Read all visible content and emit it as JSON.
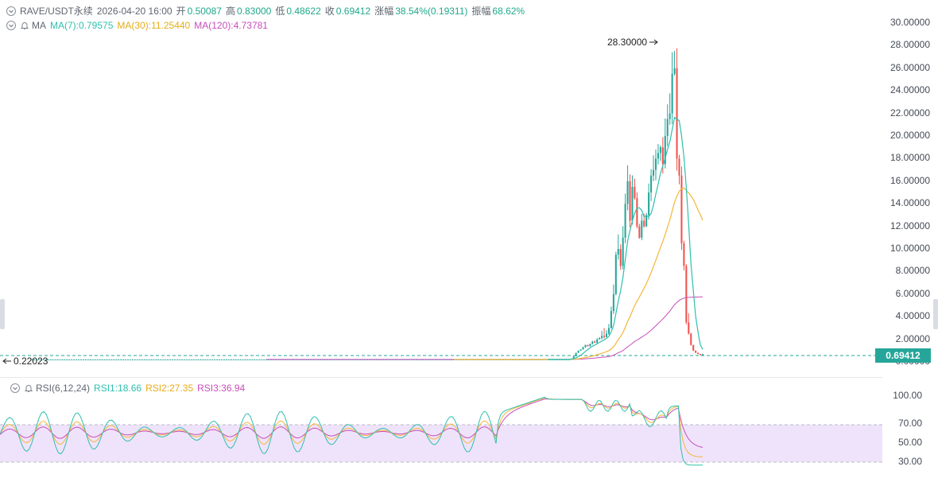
{
  "header": {
    "symbol": "RAVE/USDT永续",
    "datetime": "2026-04-20 16:00",
    "open_label": "开",
    "open": "0.50087",
    "high_label": "高",
    "high": "0.83000",
    "low_label": "低",
    "low": "0.48622",
    "close_label": "收",
    "close": "0.69412",
    "change_label": "涨幅",
    "change": "38.54%(0.19311)",
    "amplitude_label": "振幅",
    "amplitude": "68.62%"
  },
  "ma_legend": {
    "name": "MA",
    "ma7": "MA(7):0.79575",
    "ma30": "MA(30):11.25440",
    "ma120": "MA(120):4.73781"
  },
  "rsi_legend": {
    "name": "RSI(6,12,24)",
    "rsi1": "RSI1:18.66",
    "rsi2": "RSI2:27.35",
    "rsi3": "RSI3:36.94"
  },
  "price_axis": [
    "30.00000",
    "28.00000",
    "26.00000",
    "24.00000",
    "22.00000",
    "20.00000",
    "18.00000",
    "16.00000",
    "14.00000",
    "12.00000",
    "10.00000",
    "8.00000",
    "6.00000",
    "4.00000",
    "2.00000",
    "0.00000"
  ],
  "rsi_axis": [
    "100.00",
    "70.00",
    "50.00",
    "30.00"
  ],
  "annotations": {
    "high_marker": "28.30000",
    "low_marker": "0.22023",
    "last_price": "0.69412"
  },
  "colors": {
    "up": "#26a69a",
    "down": "#ef5350",
    "ma7": "#2fbfad",
    "ma30": "#f5b63a",
    "ma120": "#c94dbb",
    "rsi_band": "#efe3fb"
  },
  "chart_data": [
    {
      "type": "candlestick",
      "title": "RAVE/USDT永续",
      "ylim": [
        0,
        30
      ],
      "series": [
        {
          "name": "MA(7)",
          "last": 0.79575
        },
        {
          "name": "MA(30)",
          "last": 11.2544
        },
        {
          "name": "MA(120)",
          "last": 4.73781
        }
      ],
      "notable_values": {
        "high": 28.3,
        "low": 0.22023,
        "last": 0.69412
      },
      "approx_closes": [
        0.22,
        0.22,
        0.22,
        0.22,
        0.22,
        0.22,
        0.22,
        0.22,
        0.22,
        0.22,
        0.22,
        0.22,
        0.22,
        0.22,
        0.22,
        0.22,
        0.22,
        0.22,
        0.22,
        0.22,
        0.22,
        0.22,
        0.22,
        0.22,
        0.22,
        0.22,
        0.22,
        0.22,
        0.22,
        0.22,
        0.22,
        0.22,
        0.22,
        0.22,
        0.22,
        0.22,
        0.22,
        0.22,
        0.22,
        0.22,
        0.22,
        0.22,
        0.22,
        0.22,
        0.22,
        0.22,
        0.22,
        0.22,
        0.22,
        0.22,
        0.22,
        0.22,
        0.22,
        0.22,
        0.22,
        0.22,
        0.22,
        0.22,
        0.22,
        0.22,
        0.22,
        0.22,
        0.22,
        0.22,
        0.22,
        0.22,
        0.22,
        0.22,
        0.22,
        0.22,
        0.22,
        0.22,
        0.22,
        0.22,
        0.22,
        0.22,
        0.22,
        0.22,
        0.22,
        0.22,
        0.22,
        0.22,
        0.22,
        0.22,
        0.22,
        0.22,
        0.22,
        0.22,
        0.22,
        0.22,
        0.22,
        0.22,
        0.22,
        0.22,
        0.22,
        0.22,
        0.22,
        0.22,
        0.22,
        0.22,
        0.22,
        0.22,
        0.22,
        0.22,
        0.22,
        0.22,
        0.22,
        0.22,
        0.22,
        0.22,
        0.22,
        0.22,
        0.22,
        0.22,
        0.22,
        0.22,
        0.22,
        0.22,
        0.22,
        0.22,
        0.22,
        0.22,
        0.22,
        0.22,
        0.22,
        0.22,
        0.22,
        0.22,
        0.22,
        0.22,
        0.22,
        0.22,
        0.22,
        0.22,
        0.22,
        0.22,
        0.22,
        0.22,
        0.22,
        0.22,
        0.22,
        0.22,
        0.22,
        0.22,
        0.22,
        0.22,
        0.22,
        0.22,
        0.22,
        0.22,
        0.22,
        0.22,
        0.22,
        0.22,
        0.22,
        0.22,
        0.22,
        0.22,
        0.22,
        0.22,
        0.22,
        0.22,
        0.22,
        0.22,
        0.22,
        0.22,
        0.22,
        0.22,
        0.22,
        0.22,
        0.22,
        0.22,
        0.22,
        0.22,
        0.22,
        0.22,
        0.22,
        0.22,
        0.22,
        0.22,
        0.22,
        0.22,
        0.22,
        0.22,
        0.22,
        0.22,
        0.22,
        0.22,
        0.22,
        0.22,
        0.22,
        0.22,
        0.22,
        0.22,
        0.22,
        0.22,
        0.22,
        0.22,
        0.22,
        0.22,
        0.22,
        0.22,
        0.22,
        0.22,
        0.22,
        0.22,
        0.22,
        0.22,
        0.22,
        0.22,
        0.22,
        0.22,
        0.22,
        0.22,
        0.22,
        0.22,
        0.22,
        0.22,
        0.22,
        0.22,
        0.22,
        0.22,
        0.22,
        0.22,
        0.22,
        0.22,
        0.22,
        0.22,
        0.22,
        0.22,
        0.3,
        0.5,
        0.8,
        1.0,
        1.1,
        1.3,
        1.5,
        1.4,
        1.6,
        1.8,
        1.7,
        2.0,
        2.1,
        2.3,
        2.2,
        2.5,
        3.0,
        4.5,
        6.0,
        9.5,
        10.0,
        8.5,
        11.0,
        14.0,
        16.0,
        12.5,
        15.5,
        14.5,
        12.0,
        11.0,
        12.5,
        12.0,
        13.0,
        15.0,
        16.5,
        17.0,
        18.0,
        18.5,
        19.0,
        17.5,
        20.0,
        21.5,
        22.0,
        25.5,
        26.0,
        18.0,
        16.5,
        10.5,
        8.5,
        3.5,
        2.5,
        1.5,
        1.0,
        0.8,
        0.7,
        0.6,
        0.69
      ],
      "rsi_ylim": [
        0,
        100
      ],
      "rsi_lines": {
        "RSI1": 18.66,
        "RSI2": 27.35,
        "RSI3": 36.94
      }
    }
  ]
}
